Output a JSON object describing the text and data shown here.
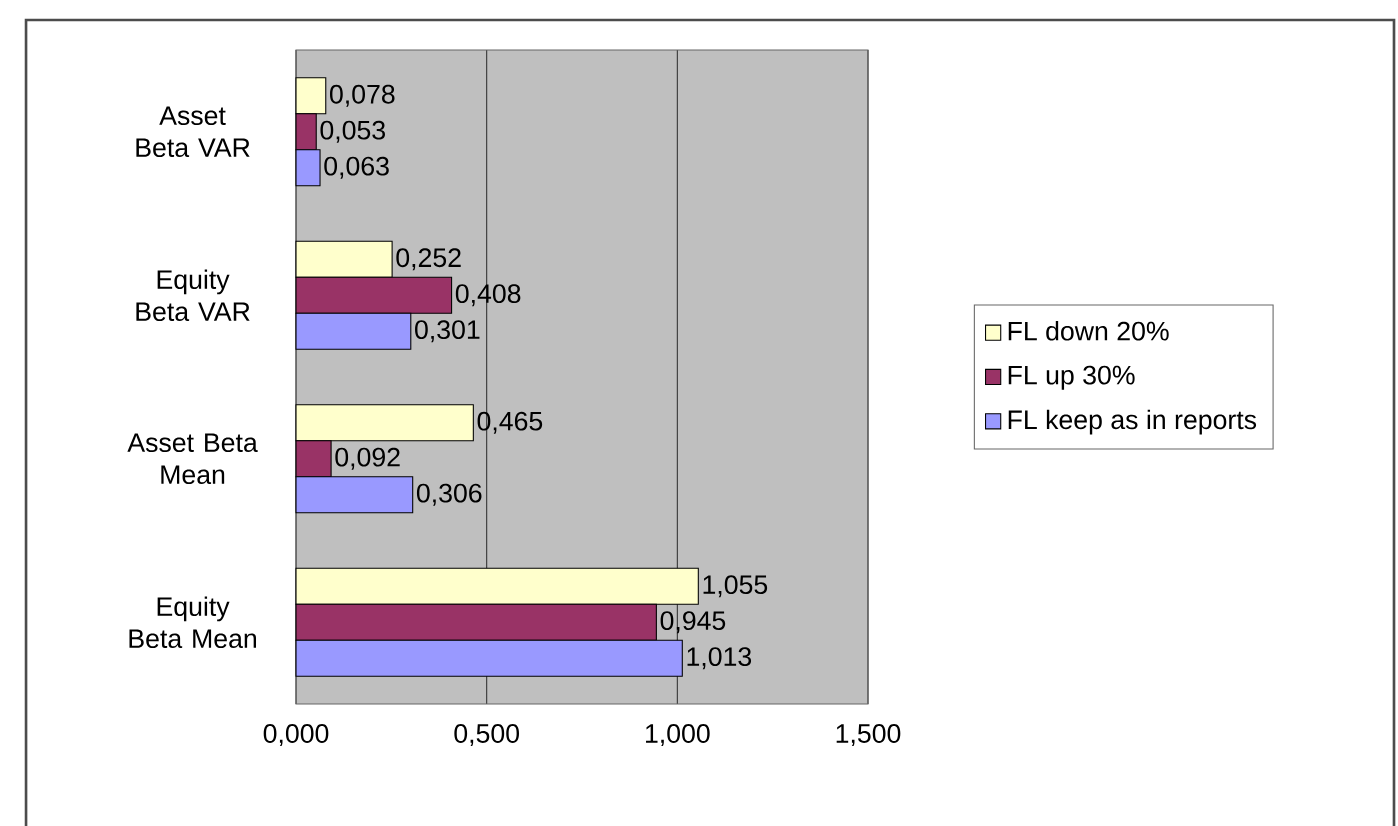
{
  "chart_data": {
    "type": "bar",
    "orientation": "horizontal",
    "categories": [
      "Asset Beta VAR",
      "Equity Beta VAR",
      "Asset Beta Mean",
      "Equity Beta Mean"
    ],
    "series": [
      {
        "name": "FL down 20%",
        "color": "#ffffcc",
        "values": [
          0.078,
          0.252,
          0.465,
          1.055
        ],
        "value_labels": [
          "0,078",
          "0,252",
          "0,465",
          "1,055"
        ]
      },
      {
        "name": "FL up 30%",
        "color": "#993366",
        "values": [
          0.053,
          0.408,
          0.092,
          0.945
        ],
        "value_labels": [
          "0,053",
          "0,408",
          "0,092",
          "0,945"
        ]
      },
      {
        "name": "FL keep as in reports",
        "color": "#9999ff",
        "values": [
          0.063,
          0.301,
          0.306,
          1.013
        ],
        "value_labels": [
          "0,063",
          "0,301",
          "0,306",
          "1,013"
        ]
      }
    ],
    "xlim": [
      0,
      1.5
    ],
    "xticks": [
      {
        "value": 0,
        "label": "0,000"
      },
      {
        "value": 0.5,
        "label": "0,500"
      },
      {
        "value": 1,
        "label": "1,000"
      },
      {
        "value": 1.5,
        "label": "1,500"
      }
    ],
    "grid": "x",
    "legend": "right"
  }
}
